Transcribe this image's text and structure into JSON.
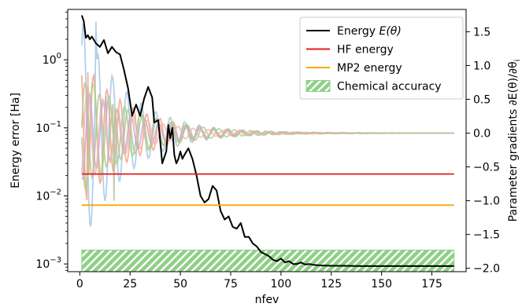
{
  "chart_data": {
    "type": "line",
    "xlabel": "nfev",
    "ylabel_left": "Energy error [Ha]",
    "ylabel_right": "Parameter gradients ∂E(θ)/∂θ",
    "ylabel_right_subscript": "i",
    "x_ticks": [
      0,
      25,
      50,
      75,
      100,
      125,
      150,
      175
    ],
    "xlim": [
      -6,
      192
    ],
    "ylim_left": [
      0.00077,
      5.5
    ],
    "yscale_left": "log",
    "y_ticks_left": [
      {
        "value": 1,
        "label": "10",
        "exp": "0"
      },
      {
        "value": 0.1,
        "label": "10",
        "exp": "−1"
      },
      {
        "value": 0.01,
        "label": "10",
        "exp": "−2"
      },
      {
        "value": 0.001,
        "label": "10",
        "exp": "−3"
      }
    ],
    "ylim_right": [
      -2.05,
      1.83
    ],
    "y_ticks_right": [
      1.5,
      1.0,
      0.5,
      0.0,
      -0.5,
      -1.0,
      -1.5,
      -2.0
    ],
    "y_tick_labels_right": [
      "1.5",
      "1.0",
      "0.5",
      "0.0",
      "−0.5",
      "−1.0",
      "−1.5",
      "−2.0"
    ],
    "legend": {
      "placement": "top-right",
      "entries": [
        {
          "label": "Energy ",
          "math": "E(θ)",
          "kind": "line",
          "color": "#000000"
        },
        {
          "label": "HF energy",
          "kind": "line",
          "color": "#e41a1c"
        },
        {
          "label": "MP2 energy",
          "kind": "line",
          "color": "#ffa500"
        },
        {
          "label": "Chemical accuracy",
          "kind": "hatch",
          "color": "#4daf4a"
        }
      ]
    },
    "series": [
      {
        "name": "Energy E(θ)",
        "color": "#000000",
        "axis": "left",
        "x": [
          1,
          2,
          3,
          4,
          5,
          6,
          8,
          10,
          12,
          14,
          16,
          18,
          20,
          22,
          24,
          26,
          28,
          30,
          32,
          34,
          36,
          37,
          39,
          41,
          43,
          44,
          45,
          46,
          47,
          48,
          49,
          50,
          51,
          52,
          54,
          56,
          58,
          60,
          62,
          64,
          66,
          68,
          70,
          72,
          74,
          76,
          78,
          80,
          82,
          84,
          86,
          88,
          90,
          92,
          94,
          96,
          98,
          100,
          102,
          104,
          106,
          108,
          110,
          112,
          114,
          116,
          118,
          120,
          125,
          130,
          140,
          150,
          160,
          170,
          180,
          186
        ],
        "y": [
          4.5,
          3.7,
          2.1,
          2.3,
          2.0,
          2.2,
          1.75,
          1.55,
          1.95,
          1.25,
          1.55,
          1.3,
          1.2,
          0.7,
          0.38,
          0.15,
          0.22,
          0.15,
          0.27,
          0.4,
          0.28,
          0.12,
          0.13,
          0.03,
          0.045,
          0.11,
          0.07,
          0.1,
          0.04,
          0.03,
          0.035,
          0.045,
          0.035,
          0.04,
          0.05,
          0.035,
          0.02,
          0.01,
          0.008,
          0.009,
          0.014,
          0.012,
          0.006,
          0.0045,
          0.005,
          0.0035,
          0.0033,
          0.004,
          0.0025,
          0.0025,
          0.002,
          0.0018,
          0.0015,
          0.0014,
          0.0013,
          0.00115,
          0.0011,
          0.0012,
          0.00105,
          0.0011,
          0.001,
          0.001,
          0.00105,
          0.00098,
          0.001,
          0.00097,
          0.00096,
          0.00095,
          0.00094,
          0.00094,
          0.00093,
          0.00093,
          0.00093,
          0.00093,
          0.00093,
          0.00093
        ]
      },
      {
        "name": "HF energy",
        "color": "#e41a1c",
        "axis": "left",
        "x": [
          1,
          186
        ],
        "y": [
          0.021,
          0.021
        ]
      },
      {
        "name": "MP2 energy",
        "color": "#ffa500",
        "axis": "left",
        "x": [
          1,
          186
        ],
        "y": [
          0.0073,
          0.0073
        ]
      }
    ],
    "chemical_accuracy_band": {
      "x": [
        1,
        186
      ],
      "y": [
        0.00077,
        0.0016
      ],
      "color": "#4daf4a"
    },
    "gradient_series": [
      {
        "color": "#a6c8e6",
        "phase": 0.0,
        "period": 7.2,
        "amp": 1.7,
        "decay": 22,
        "spike_x": 8,
        "spike_y": 1.65
      },
      {
        "color": "#f4a582",
        "phase": 1.3,
        "period": 6.6,
        "amp": 1.1,
        "decay": 24,
        "spike_x": 4,
        "spike_y": 0.9
      },
      {
        "color": "#a6d68f",
        "phase": 2.4,
        "period": 7.8,
        "amp": 0.9,
        "decay": 26,
        "spike_x": 6,
        "spike_y": 0.75
      },
      {
        "color": "#c7a8d8",
        "phase": 3.5,
        "period": 6.9,
        "amp": 0.7,
        "decay": 25,
        "spike_x": 13,
        "spike_y": 0.55
      },
      {
        "color": "#f7b5b0",
        "phase": 4.6,
        "period": 7.5,
        "amp": 0.8,
        "decay": 23,
        "spike_x": 3,
        "spike_y": 0.5
      },
      {
        "color": "#bcc29a",
        "phase": 5.5,
        "period": 7.1,
        "amp": 0.8,
        "decay": 27,
        "spike_x": 17,
        "spike_y": -1.0
      }
    ]
  }
}
